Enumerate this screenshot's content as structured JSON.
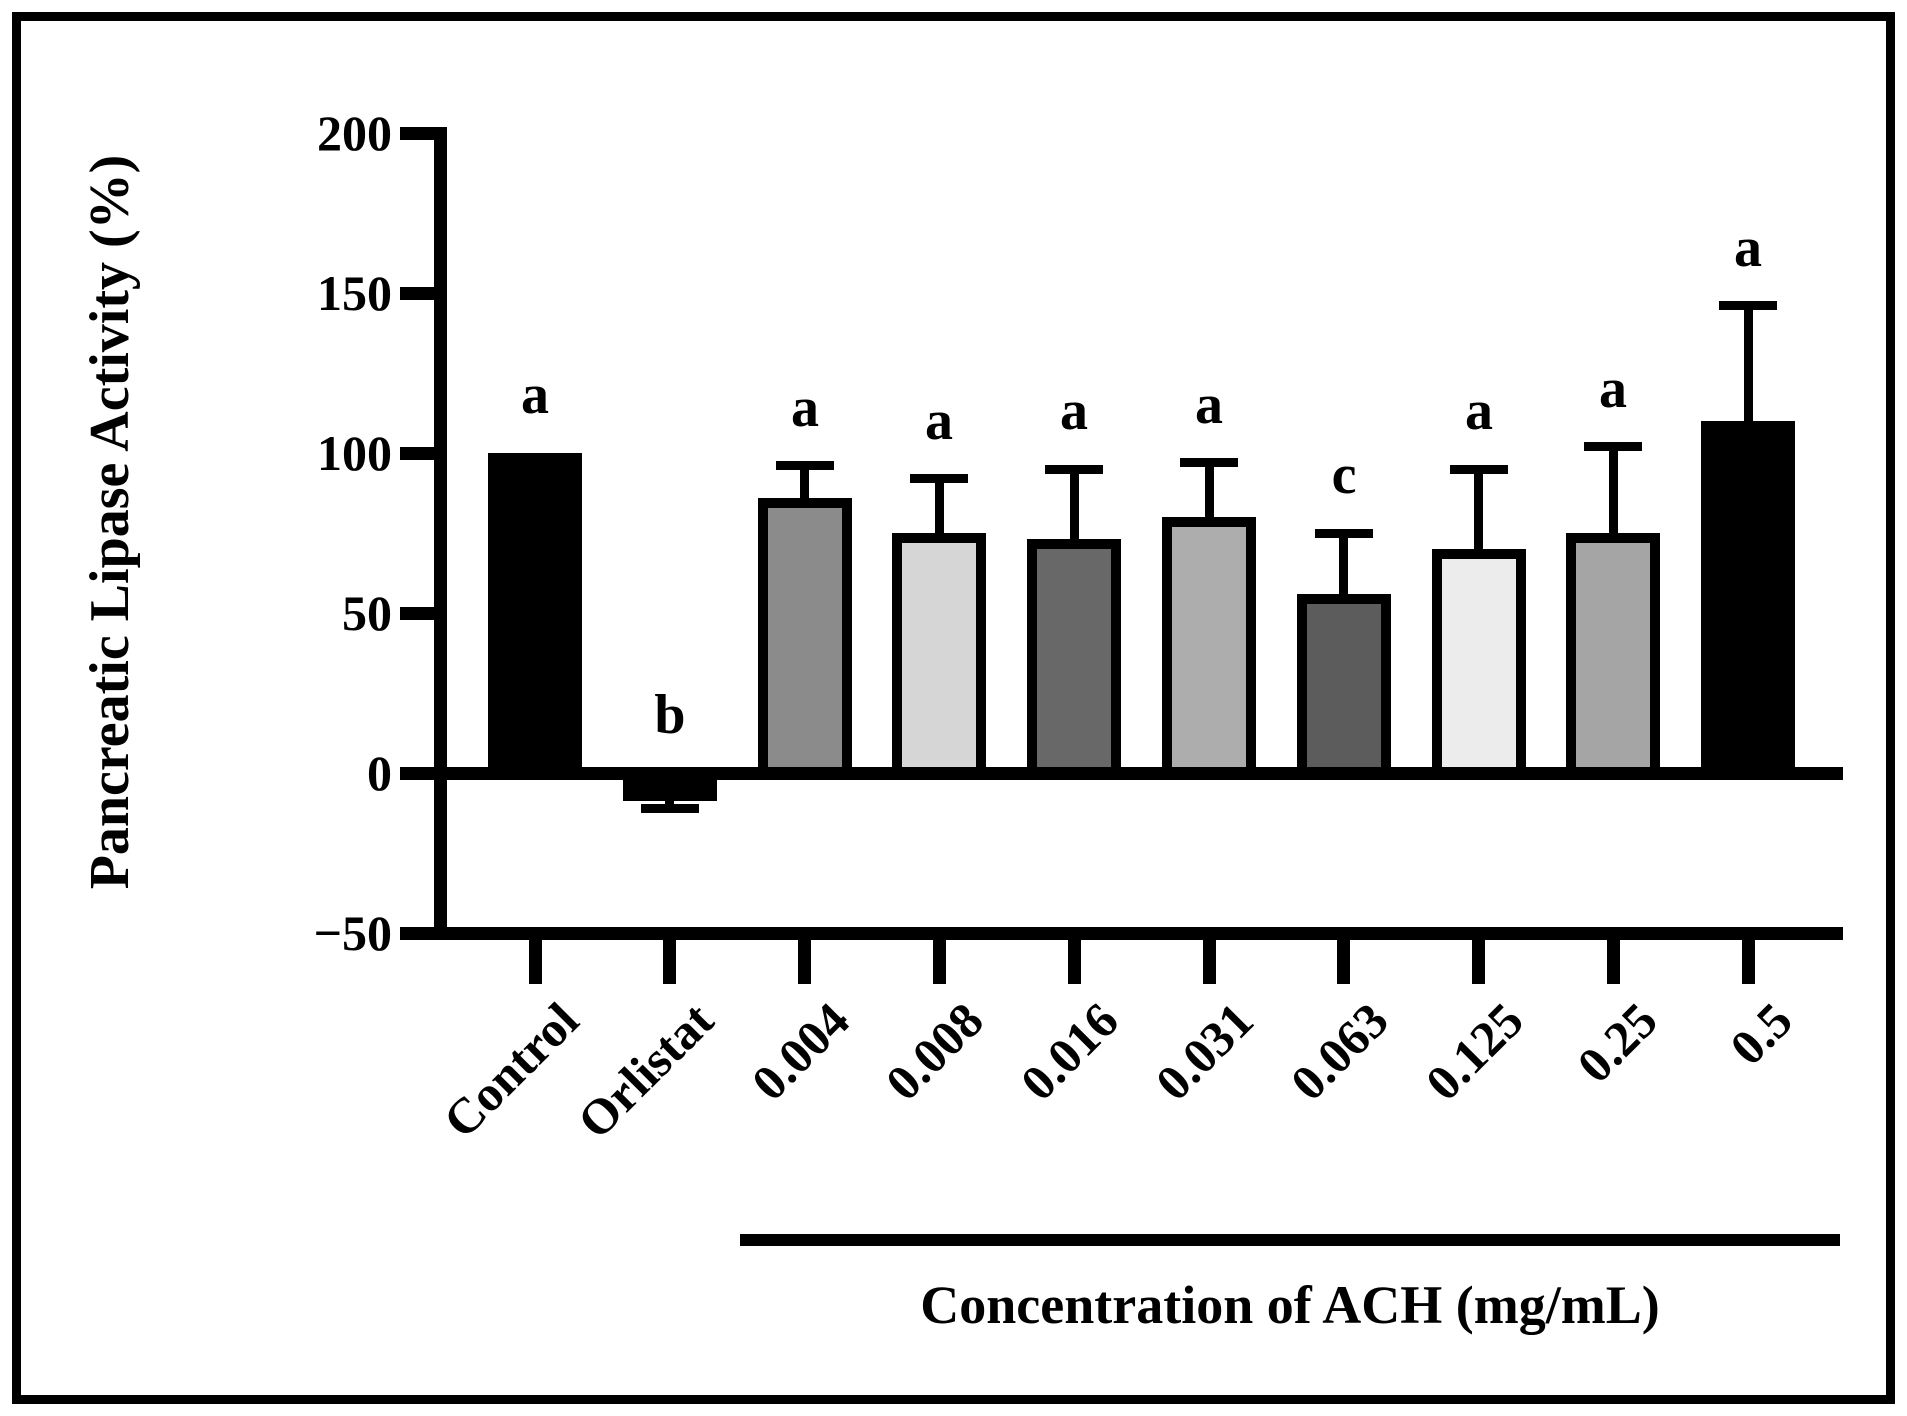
{
  "figure": {
    "y_axis_title": "Pancreatic Lipase Activity (%)",
    "group_axis_label": "Concentration of ACH (mg/mL)"
  },
  "chart_data": {
    "type": "bar",
    "title": "",
    "ylabel": "Pancreatic Lipase Activity (%)",
    "xlabel": "",
    "group_label": "Concentration of ACH (mg/mL)",
    "ylim": [
      -50,
      200
    ],
    "yticks": [
      -50,
      0,
      50,
      100,
      150,
      200
    ],
    "ytick_labels": [
      "−50",
      "0",
      "50",
      "100",
      "150",
      "200"
    ],
    "grid": false,
    "legend": false,
    "categories": [
      "Control",
      "Orlistat",
      "0.004",
      "0.008",
      "0.016",
      "0.031",
      "0.063",
      "0.125",
      "0.25",
      "0.5"
    ],
    "values": [
      100,
      -5,
      86,
      75,
      73,
      80,
      56,
      70,
      75,
      110
    ],
    "errors_sd": [
      0,
      6,
      10,
      17,
      22,
      17,
      19,
      25,
      27,
      36
    ],
    "sig_letters": [
      "a",
      "b",
      "a",
      "a",
      "a",
      "a",
      "c",
      "a",
      "a",
      "a"
    ],
    "bar_colors": [
      "#000000",
      "#000000",
      "#8b8b8b",
      "#d6d6d6",
      "#686868",
      "#adadad",
      "#5c5c5c",
      "#ececec",
      "#a5a5a5",
      "#000000"
    ],
    "bar_outline_color": "#000000",
    "group_span_categories": [
      "0.004",
      "0.5"
    ]
  }
}
